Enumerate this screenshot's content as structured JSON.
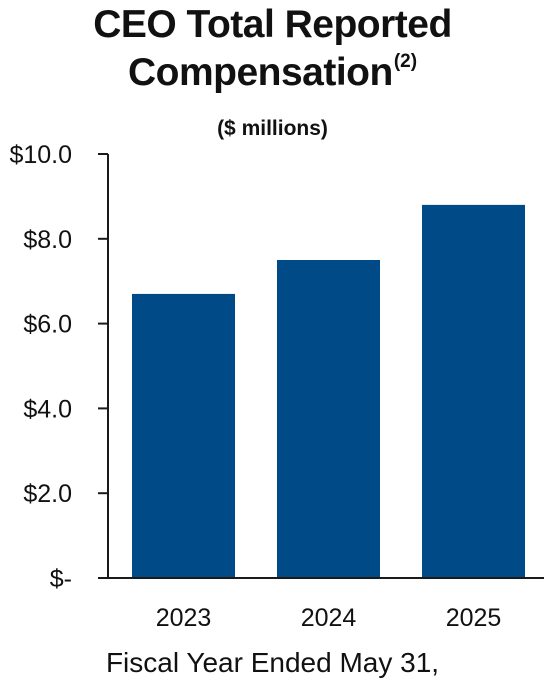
{
  "chart_data": {
    "type": "bar",
    "title_line1": "CEO Total Reported",
    "title_line2": "Compensation",
    "title_superscript": "(2)",
    "subtitle": "($ millions)",
    "categories": [
      "2023",
      "2024",
      "2025"
    ],
    "values": [
      6.7,
      7.5,
      8.8
    ],
    "ylim": [
      0,
      10
    ],
    "yticks": [
      {
        "value": 10,
        "label": "$10.0"
      },
      {
        "value": 8,
        "label": "$8.0"
      },
      {
        "value": 6,
        "label": "$6.0"
      },
      {
        "value": 4,
        "label": "$4.0"
      },
      {
        "value": 2,
        "label": "$2.0"
      },
      {
        "value": 0,
        "label": "$-"
      }
    ],
    "xlabel": "Fiscal Year Ended May 31,",
    "ylabel": "",
    "grid": false,
    "bar_color": "#004b87",
    "axis_color": "#1a1a1a"
  }
}
